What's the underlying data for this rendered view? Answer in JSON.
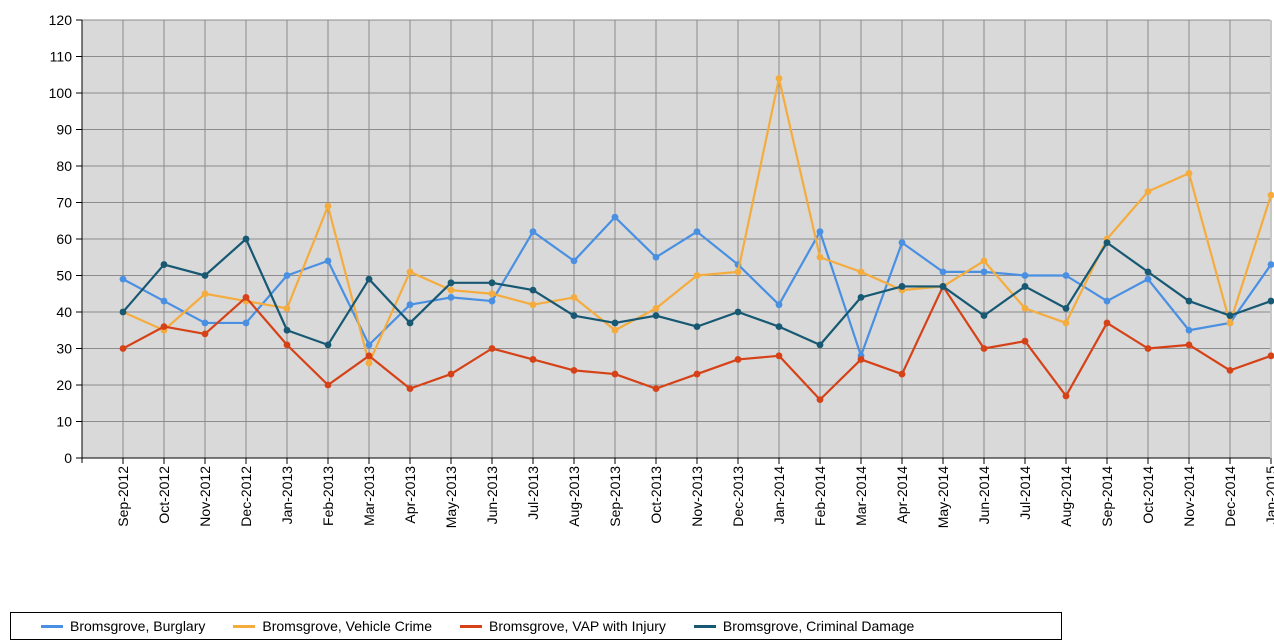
{
  "chart_data": {
    "type": "line",
    "title": "",
    "xlabel": "",
    "ylabel": "",
    "ylim": [
      0,
      120
    ],
    "yticks": [
      0,
      10,
      20,
      30,
      40,
      50,
      60,
      70,
      80,
      90,
      100,
      110,
      120
    ],
    "grid": true,
    "legend_position": "bottom",
    "plot_background": "#d9d9d9",
    "grid_color": "#8c8c8c",
    "categories": [
      "Sep-2012",
      "Oct-2012",
      "Nov-2012",
      "Dec-2012",
      "Jan-2013",
      "Feb-2013",
      "Mar-2013",
      "Apr-2013",
      "May-2013",
      "Jun-2013",
      "Jul-2013",
      "Aug-2013",
      "Sep-2013",
      "Oct-2013",
      "Nov-2013",
      "Dec-2013",
      "Jan-2014",
      "Feb-2014",
      "Mar-2014",
      "Apr-2014",
      "May-2014",
      "Jun-2014",
      "Jul-2014",
      "Aug-2014",
      "Sep-2014",
      "Oct-2014",
      "Nov-2014",
      "Dec-2014",
      "Jan-2015"
    ],
    "series": [
      {
        "name": "Bromsgrove, Burglary",
        "color": "#4a90e2",
        "values": [
          49,
          43,
          37,
          37,
          50,
          54,
          31,
          42,
          44,
          43,
          62,
          54,
          66,
          55,
          62,
          53,
          42,
          62,
          28,
          59,
          51,
          51,
          50,
          50,
          43,
          49,
          35,
          37,
          53
        ]
      },
      {
        "name": "Bromsgrove, Vehicle Crime",
        "color": "#f5ac3e",
        "values": [
          40,
          35,
          45,
          43,
          41,
          69,
          26,
          51,
          46,
          45,
          42,
          44,
          35,
          41,
          50,
          51,
          104,
          55,
          51,
          46,
          47,
          54,
          41,
          37,
          60,
          73,
          78,
          37,
          72
        ]
      },
      {
        "name": "Bromsgrove, VAP with Injury",
        "color": "#d64218",
        "values": [
          30,
          36,
          34,
          44,
          31,
          20,
          28,
          19,
          23,
          30,
          27,
          24,
          23,
          19,
          23,
          27,
          28,
          16,
          27,
          23,
          47,
          30,
          32,
          17,
          37,
          30,
          31,
          24,
          28
        ]
      },
      {
        "name": "Bromsgrove, Criminal Damage",
        "color": "#175873",
        "values": [
          40,
          53,
          50,
          60,
          35,
          31,
          49,
          37,
          48,
          48,
          46,
          39,
          37,
          39,
          36,
          40,
          36,
          31,
          44,
          47,
          47,
          39,
          47,
          41,
          59,
          51,
          43,
          39,
          43
        ]
      }
    ]
  }
}
